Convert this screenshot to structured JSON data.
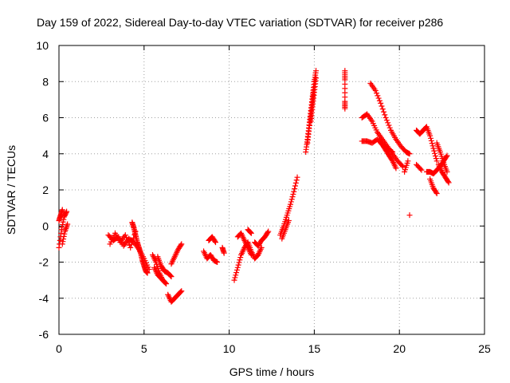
{
  "chart_data": {
    "type": "scatter",
    "title": "Day 159 of 2022, Sidereal Day-to-day VTEC variation (SDTVAR) for receiver p286",
    "xlabel": "GPS time / hours",
    "ylabel": "SDTVAR / TECUs",
    "xlim": [
      0,
      25
    ],
    "ylim": [
      -6,
      10
    ],
    "xticks": [
      0,
      5,
      10,
      15,
      20,
      25
    ],
    "yticks": [
      -6,
      -4,
      -2,
      0,
      2,
      4,
      6,
      8,
      10
    ],
    "grid": true,
    "marker": "+",
    "color": "#ff0000",
    "series": [
      {
        "name": "SDTVAR",
        "segments": [
          {
            "x": [
              0.0,
              0.15,
              0.3,
              0.45
            ],
            "y": [
              -1.2,
              -0.2,
              0.5,
              0.8
            ]
          },
          {
            "x": [
              0.0,
              0.1,
              0.2
            ],
            "y": [
              0.3,
              0.6,
              0.9
            ]
          },
          {
            "x": [
              0.2,
              0.35,
              0.5
            ],
            "y": [
              -1.0,
              -0.3,
              0.1
            ]
          },
          {
            "x": [
              2.9,
              3.2,
              3.5,
              3.8,
              4.1,
              4.4,
              4.7,
              5.0,
              5.3
            ],
            "y": [
              -0.5,
              -0.8,
              -0.6,
              -1.1,
              -0.7,
              -0.9,
              -1.3,
              -1.8,
              -2.4
            ]
          },
          {
            "x": [
              3.0,
              3.3,
              3.6,
              3.9,
              4.2,
              4.5
            ],
            "y": [
              -1.0,
              -0.4,
              -0.9,
              -0.5,
              -1.2,
              -0.3
            ]
          },
          {
            "x": [
              4.3,
              4.4,
              4.5,
              4.6,
              4.7,
              4.8,
              4.9,
              5.0,
              5.1,
              5.2
            ],
            "y": [
              0.2,
              -0.1,
              -0.5,
              -0.9,
              -1.2,
              -1.5,
              -1.9,
              -2.2,
              -2.5,
              -2.6
            ]
          },
          {
            "x": [
              5.5,
              5.7,
              5.9,
              6.1,
              6.3
            ],
            "y": [
              -1.6,
              -2.0,
              -2.6,
              -3.0,
              -3.2
            ]
          },
          {
            "x": [
              5.6,
              5.8,
              6.0,
              6.2
            ],
            "y": [
              -2.3,
              -2.7,
              -2.9,
              -3.1
            ]
          },
          {
            "x": [
              5.8,
              6.0,
              6.2,
              6.4,
              6.6
            ],
            "y": [
              -1.7,
              -2.2,
              -2.5,
              -2.6,
              -2.8
            ]
          },
          {
            "x": [
              6.4,
              6.6,
              6.8,
              7.0,
              7.2
            ],
            "y": [
              -3.8,
              -4.2,
              -4.0,
              -3.8,
              -3.6
            ]
          },
          {
            "x": [
              6.6,
              6.8,
              7.0,
              7.2
            ],
            "y": [
              -2.1,
              -1.7,
              -1.3,
              -1.0
            ]
          },
          {
            "x": [
              8.5,
              8.7,
              8.9,
              9.1,
              9.3
            ],
            "y": [
              -1.4,
              -1.8,
              -1.6,
              -1.9,
              -2.0
            ]
          },
          {
            "x": [
              8.8,
              9.0,
              9.2
            ],
            "y": [
              -0.8,
              -0.6,
              -0.9
            ]
          },
          {
            "x": [
              9.6,
              9.7
            ],
            "y": [
              -1.2,
              -1.5
            ]
          },
          {
            "x": [
              10.3,
              10.5,
              10.7,
              10.9,
              11.1,
              11.3,
              11.5,
              11.7,
              11.9
            ],
            "y": [
              -3.0,
              -2.3,
              -1.6,
              -1.2,
              -0.9,
              -1.4,
              -1.8,
              -1.6,
              -1.2
            ]
          },
          {
            "x": [
              10.5,
              10.7,
              10.9,
              11.1,
              11.3
            ],
            "y": [
              -0.6,
              -0.4,
              -0.8,
              -1.2,
              -1.6
            ]
          },
          {
            "x": [
              11.5,
              11.7,
              11.9,
              12.1,
              12.3
            ],
            "y": [
              -0.9,
              -1.1,
              -0.8,
              -0.6,
              -0.3
            ]
          },
          {
            "x": [
              11.1,
              11.3
            ],
            "y": [
              -0.2,
              -0.4
            ]
          },
          {
            "x": [
              13.0,
              13.2,
              13.4,
              13.6,
              13.8,
              14.0
            ],
            "y": [
              -0.5,
              0.0,
              0.6,
              1.2,
              1.9,
              2.7
            ]
          },
          {
            "x": [
              13.1,
              13.3,
              13.5
            ],
            "y": [
              -0.7,
              -0.2,
              0.3
            ]
          },
          {
            "x": [
              14.5,
              14.6,
              14.7,
              14.8,
              14.9,
              15.0,
              15.1
            ],
            "y": [
              4.1,
              4.8,
              5.6,
              6.4,
              7.2,
              8.0,
              8.6
            ]
          },
          {
            "x": [
              14.6,
              14.7,
              14.8,
              14.9,
              15.0
            ],
            "y": [
              4.6,
              5.4,
              6.2,
              7.0,
              7.7
            ]
          },
          {
            "x": [
              14.8,
              14.9,
              15.0,
              15.1
            ],
            "y": [
              5.8,
              6.6,
              7.4,
              8.2
            ]
          },
          {
            "x": [
              16.8,
              16.8,
              16.8,
              16.8
            ],
            "y": [
              8.6,
              8.1,
              6.9,
              6.5
            ]
          },
          {
            "x": [
              17.8,
              18.1,
              18.4,
              18.7,
              19.0,
              19.3,
              19.6,
              19.9,
              20.2
            ],
            "y": [
              6.0,
              6.2,
              5.8,
              5.2,
              4.8,
              4.4,
              4.0,
              3.6,
              3.3
            ]
          },
          {
            "x": [
              17.8,
              18.1,
              18.4,
              18.7,
              19.0,
              19.3,
              19.6
            ],
            "y": [
              4.7,
              4.7,
              4.6,
              4.8,
              4.5,
              4.3,
              4.1
            ]
          },
          {
            "x": [
              18.3,
              18.6,
              18.9,
              19.2,
              19.5,
              19.8,
              20.1,
              20.4,
              20.6
            ],
            "y": [
              7.9,
              7.5,
              6.8,
              6.0,
              5.3,
              4.8,
              4.4,
              4.1,
              4.0
            ]
          },
          {
            "x": [
              18.8,
              19.0,
              19.2,
              19.4,
              19.6,
              19.8
            ],
            "y": [
              4.8,
              4.5,
              4.2,
              3.9,
              3.6,
              3.2
            ]
          },
          {
            "x": [
              20.3,
              20.5
            ],
            "y": [
              3.0,
              3.6
            ]
          },
          {
            "x": [
              20.6
            ],
            "y": [
              0.6
            ]
          },
          {
            "x": [
              21.0,
              21.2,
              21.4,
              21.6,
              21.8,
              22.0,
              22.2
            ],
            "y": [
              5.3,
              5.1,
              5.3,
              5.5,
              5.0,
              4.3,
              3.6
            ]
          },
          {
            "x": [
              21.0,
              21.3
            ],
            "y": [
              3.4,
              3.1
            ]
          },
          {
            "x": [
              21.6,
              21.8,
              22.0,
              22.2,
              22.4,
              22.6,
              22.8
            ],
            "y": [
              3.0,
              3.0,
              2.9,
              3.1,
              3.3,
              3.6,
              3.9
            ]
          },
          {
            "x": [
              21.8,
              22.0,
              22.2
            ],
            "y": [
              2.6,
              2.1,
              1.8
            ]
          },
          {
            "x": [
              22.2,
              22.4,
              22.6,
              22.8
            ],
            "y": [
              4.6,
              4.1,
              3.5,
              3.0
            ]
          },
          {
            "x": [
              22.3,
              22.5,
              22.7,
              22.9
            ],
            "y": [
              3.4,
              3.0,
              2.7,
              2.4
            ]
          }
        ]
      }
    ]
  }
}
